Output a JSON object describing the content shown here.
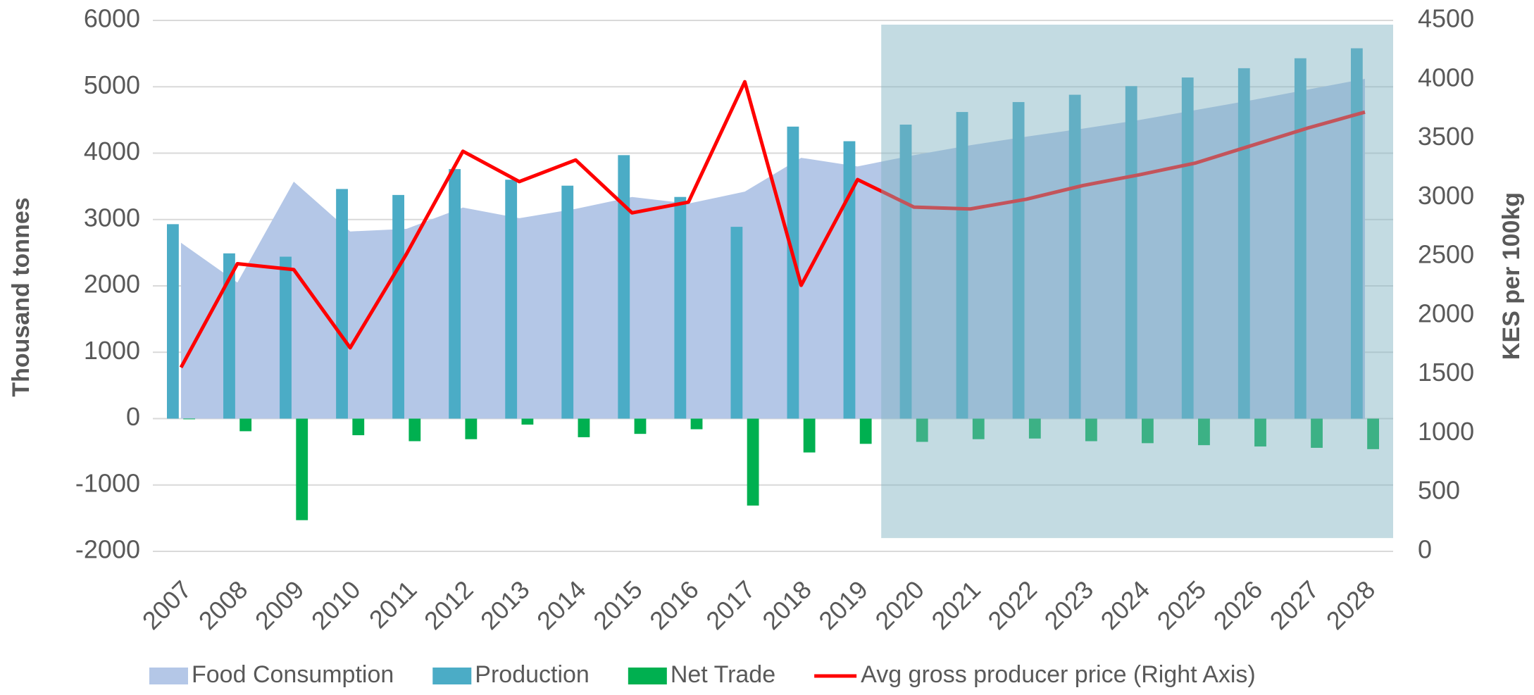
{
  "chart_data": {
    "type": "bar",
    "categories": [
      "2007",
      "2008",
      "2009",
      "2010",
      "2011",
      "2012",
      "2013",
      "2014",
      "2015",
      "2016",
      "2017",
      "2018",
      "2019",
      "2020",
      "2021",
      "2022",
      "2023",
      "2024",
      "2025",
      "2026",
      "2027",
      "2028"
    ],
    "ylabel": "Thousand tonnes",
    "y2label": "KES per 100kg",
    "ylim": [
      -2000,
      6000
    ],
    "yticks": [
      -2000,
      -1000,
      0,
      1000,
      2000,
      3000,
      4000,
      5000,
      6000
    ],
    "y2lim": [
      0,
      4500
    ],
    "y2ticks": [
      0,
      500,
      1000,
      1500,
      2000,
      2500,
      3000,
      3500,
      4000,
      4500
    ],
    "grid": true,
    "legend": "bottom",
    "series": [
      {
        "name": "Food Consumption",
        "kind": "area",
        "color": "#b4c7e7",
        "values": [
          2650,
          2050,
          3570,
          2820,
          2860,
          3180,
          3020,
          3160,
          3340,
          3240,
          3420,
          3930,
          3800,
          3970,
          4120,
          4250,
          4370,
          4500,
          4650,
          4800,
          4960,
          5120
        ]
      },
      {
        "name": "Production",
        "kind": "bar",
        "color": "#4bacc6",
        "values": [
          2930,
          2490,
          2440,
          3460,
          3370,
          3760,
          3600,
          3510,
          3970,
          3340,
          2890,
          4400,
          4180,
          4430,
          4620,
          4770,
          4880,
          5010,
          5140,
          5280,
          5430,
          5580
        ]
      },
      {
        "name": "Net Trade",
        "kind": "bar",
        "color": "#00b050",
        "values": [
          -10,
          -190,
          -1530,
          -250,
          -340,
          -310,
          -90,
          -280,
          -230,
          -160,
          -1310,
          -510,
          -380,
          -350,
          -310,
          -300,
          -340,
          -370,
          -400,
          -420,
          -440,
          -460
        ]
      },
      {
        "name": "Avg gross producer price (Right Axis)",
        "kind": "line",
        "color": "#ff0000",
        "axis": "y2",
        "values": [
          1559,
          2438,
          2388,
          1725,
          2521,
          3391,
          3134,
          3317,
          2869,
          2960,
          3980,
          2255,
          3151,
          2918,
          2902,
          2985,
          3101,
          3192,
          3292,
          3441,
          3590,
          3723
        ]
      }
    ]
  }
}
